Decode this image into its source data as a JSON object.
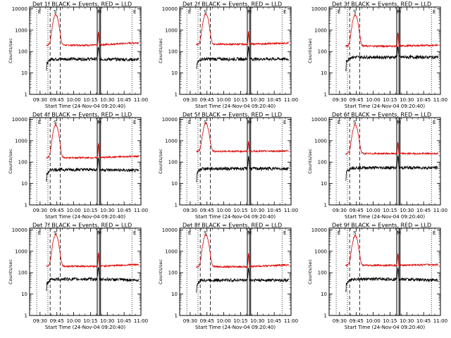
{
  "chart_data": {
    "type": "line",
    "layout": "3x3 grid",
    "xlabel": "Start Time (24-Nov-04 09:20:40)",
    "ylabel": "Counts/sec",
    "x_ticks": [
      "09:30",
      "09:45",
      "10:00",
      "10:15",
      "10:30",
      "10:45",
      "11:00"
    ],
    "x_tick_minutes": [
      570,
      585,
      600,
      615,
      630,
      645,
      660
    ],
    "xlim": [
      "09:20:40",
      "11:00"
    ],
    "y_scale": "log",
    "y_ticks": [
      "1",
      "10",
      "100",
      "1000",
      "10000"
    ],
    "ylim": [
      1,
      12000
    ],
    "series_colors": {
      "events": "#000000",
      "lld": "#dd0000"
    },
    "markers": {
      "dotted": [
        "09:27",
        "09:37",
        "10:52"
      ],
      "dashed": [
        "09:39",
        "09:48"
      ],
      "solid_pairs": [
        "10:21",
        "10:23",
        "10:24"
      ]
    },
    "marker_labels": [
      "E",
      "S",
      "M",
      "E"
    ],
    "panels": [
      {
        "title": "Det 1f BLACK = Events, RED = LLD",
        "lld": {
          "baseline": 200,
          "late": 260,
          "peak": 5200
        },
        "events": {
          "baseline": 45,
          "late": 42
        }
      },
      {
        "title": "Det 2f BLACK = Events, RED = LLD",
        "lld": {
          "baseline": 220,
          "late": 250,
          "peak": 5400
        },
        "events": {
          "baseline": 45,
          "late": 45
        }
      },
      {
        "title": "Det 3f BLACK = Events, RED = LLD",
        "lld": {
          "baseline": 180,
          "late": 200,
          "peak": 5000
        },
        "events": {
          "baseline": 55,
          "late": 55
        }
      },
      {
        "title": "Det 4f BLACK = Events, RED = LLD",
        "lld": {
          "baseline": 160,
          "late": 190,
          "peak": 5200
        },
        "events": {
          "baseline": 45,
          "late": 40
        }
      },
      {
        "title": "Det 5f BLACK = Events, RED = LLD",
        "lld": {
          "baseline": 320,
          "late": 330,
          "peak": 6200
        },
        "events": {
          "baseline": 50,
          "late": 50
        }
      },
      {
        "title": "Det 6f BLACK = Events, RED = LLD",
        "lld": {
          "baseline": 250,
          "late": 250,
          "peak": 5200
        },
        "events": {
          "baseline": 55,
          "late": 55
        }
      },
      {
        "title": "Det 7f BLACK = Events, RED = LLD",
        "lld": {
          "baseline": 200,
          "late": 240,
          "peak": 5800
        },
        "events": {
          "baseline": 50,
          "late": 45
        }
      },
      {
        "title": "Det 8f BLACK = Events, RED = LLD",
        "lld": {
          "baseline": 190,
          "late": 230,
          "peak": 5600
        },
        "events": {
          "baseline": 45,
          "late": 45
        }
      },
      {
        "title": "Det 9f BLACK = Events, RED = LLD",
        "lld": {
          "baseline": 220,
          "late": 240,
          "peak": 5000
        },
        "events": {
          "baseline": 50,
          "late": 45
        }
      }
    ]
  }
}
